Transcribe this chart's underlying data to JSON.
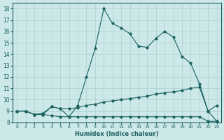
{
  "xlabel": "Humidex (Indice chaleur)",
  "xlim": [
    -0.5,
    23.5
  ],
  "ylim": [
    8,
    18.5
  ],
  "xticks": [
    0,
    1,
    2,
    3,
    4,
    5,
    6,
    7,
    8,
    9,
    10,
    11,
    12,
    13,
    14,
    15,
    16,
    17,
    18,
    19,
    20,
    21,
    22,
    23
  ],
  "yticks": [
    8,
    9,
    10,
    11,
    12,
    13,
    14,
    15,
    16,
    17,
    18
  ],
  "bg_color": "#cde8e8",
  "grid_color": "#b0d4d4",
  "line_color": "#1a6060",
  "line1_x": [
    0,
    1,
    2,
    3,
    4,
    5,
    6,
    7,
    8,
    9,
    10,
    11,
    12,
    13,
    14,
    15,
    16,
    17,
    18,
    19,
    20,
    21,
    22,
    23
  ],
  "line1_y": [
    9.0,
    9.0,
    8.7,
    8.7,
    9.4,
    9.2,
    8.5,
    9.5,
    12.0,
    14.5,
    18.0,
    16.7,
    16.3,
    15.8,
    14.7,
    14.6,
    15.4,
    16.0,
    15.5,
    13.8,
    13.2,
    11.4,
    9.0,
    9.5
  ],
  "line2_x": [
    0,
    1,
    2,
    3,
    4,
    5,
    6,
    7,
    8,
    9,
    10,
    11,
    12,
    13,
    14,
    15,
    16,
    17,
    18,
    19,
    20,
    21,
    22,
    23
  ],
  "line2_y": [
    9.0,
    9.0,
    8.7,
    8.8,
    9.4,
    9.2,
    9.2,
    9.3,
    9.5,
    9.6,
    9.8,
    9.9,
    10.0,
    10.1,
    10.2,
    10.3,
    10.5,
    10.6,
    10.7,
    10.8,
    11.0,
    11.1,
    9.0,
    8.1
  ],
  "line3_x": [
    0,
    1,
    2,
    3,
    4,
    5,
    6,
    7,
    8,
    9,
    10,
    11,
    12,
    13,
    14,
    15,
    16,
    17,
    18,
    19,
    20,
    21,
    22,
    23
  ],
  "line3_y": [
    9.0,
    9.0,
    8.7,
    8.7,
    8.6,
    8.5,
    8.5,
    8.5,
    8.5,
    8.5,
    8.5,
    8.5,
    8.5,
    8.5,
    8.5,
    8.5,
    8.5,
    8.5,
    8.5,
    8.5,
    8.5,
    8.5,
    8.1,
    8.1
  ]
}
